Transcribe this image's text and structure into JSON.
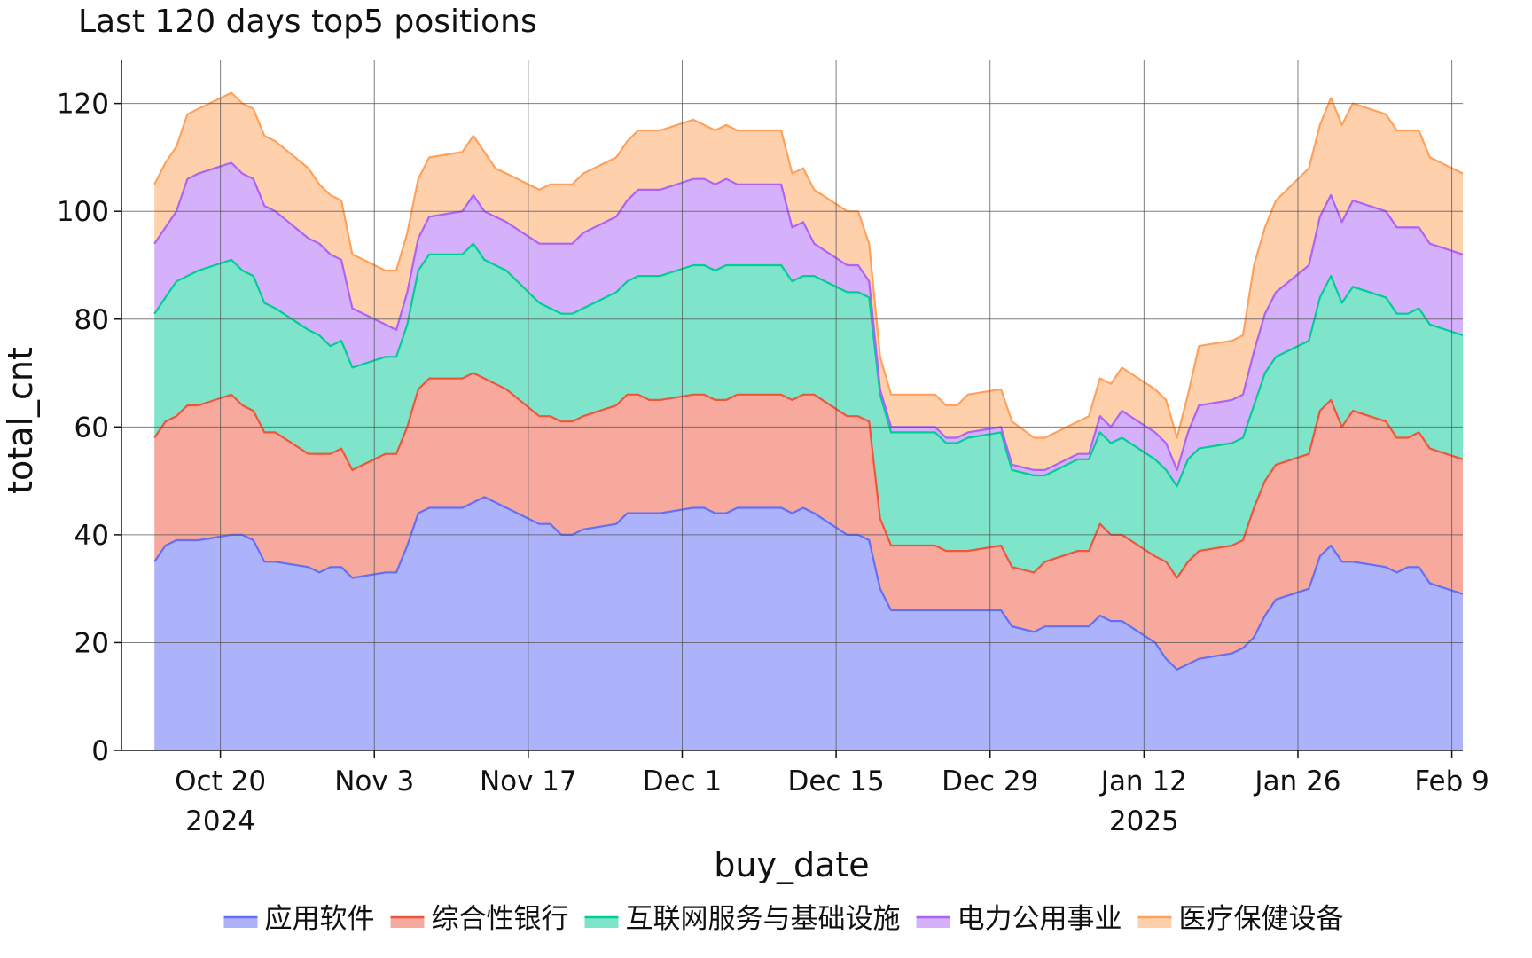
{
  "chart_data": {
    "type": "area",
    "stacked": true,
    "title": "Last 120 days top5 positions",
    "xlabel": "buy_date",
    "ylabel": "total_cnt",
    "ylim": [
      0,
      128
    ],
    "yticks": [
      0,
      20,
      40,
      60,
      80,
      100,
      120
    ],
    "xlim": [
      "2024-10-11",
      "2025-02-10"
    ],
    "xticks": [
      {
        "date": "2024-10-20",
        "label": "Oct 20",
        "sublabel": "2024"
      },
      {
        "date": "2024-11-03",
        "label": "Nov 3",
        "sublabel": ""
      },
      {
        "date": "2024-11-17",
        "label": "Nov 17",
        "sublabel": ""
      },
      {
        "date": "2024-12-01",
        "label": "Dec 1",
        "sublabel": ""
      },
      {
        "date": "2024-12-15",
        "label": "Dec 15",
        "sublabel": ""
      },
      {
        "date": "2024-12-29",
        "label": "Dec 29",
        "sublabel": ""
      },
      {
        "date": "2025-01-12",
        "label": "Jan 12",
        "sublabel": "2025"
      },
      {
        "date": "2025-01-26",
        "label": "Jan 26",
        "sublabel": ""
      },
      {
        "date": "2025-02-09",
        "label": "Feb 9",
        "sublabel": ""
      }
    ],
    "grid": true,
    "legend_position": "bottom",
    "x": [
      "2024-10-14",
      "2024-10-15",
      "2024-10-16",
      "2024-10-17",
      "2024-10-18",
      "2024-10-21",
      "2024-10-22",
      "2024-10-23",
      "2024-10-24",
      "2024-10-25",
      "2024-10-28",
      "2024-10-29",
      "2024-10-30",
      "2024-10-31",
      "2024-11-01",
      "2024-11-04",
      "2024-11-05",
      "2024-11-06",
      "2024-11-07",
      "2024-11-08",
      "2024-11-11",
      "2024-11-12",
      "2024-11-13",
      "2024-11-14",
      "2024-11-15",
      "2024-11-18",
      "2024-11-19",
      "2024-11-20",
      "2024-11-21",
      "2024-11-22",
      "2024-11-25",
      "2024-11-26",
      "2024-11-27",
      "2024-11-28",
      "2024-11-29",
      "2024-12-02",
      "2024-12-03",
      "2024-12-04",
      "2024-12-05",
      "2024-12-06",
      "2024-12-09",
      "2024-12-10",
      "2024-12-11",
      "2024-12-12",
      "2024-12-13",
      "2024-12-16",
      "2024-12-17",
      "2024-12-18",
      "2024-12-19",
      "2024-12-20",
      "2024-12-23",
      "2024-12-24",
      "2024-12-25",
      "2024-12-26",
      "2024-12-27",
      "2024-12-30",
      "2024-12-31",
      "2025-01-02",
      "2025-01-03",
      "2025-01-06",
      "2025-01-07",
      "2025-01-08",
      "2025-01-09",
      "2025-01-10",
      "2025-01-13",
      "2025-01-14",
      "2025-01-15",
      "2025-01-16",
      "2025-01-17",
      "2025-01-20",
      "2025-01-21",
      "2025-01-22",
      "2025-01-23",
      "2025-01-24",
      "2025-01-27",
      "2025-01-28",
      "2025-01-29",
      "2025-01-30",
      "2025-01-31",
      "2025-02-03",
      "2025-02-04",
      "2025-02-05",
      "2025-02-06",
      "2025-02-07",
      "2025-02-10"
    ],
    "series": [
      {
        "name": "应用软件",
        "line_color": "#636efa",
        "fill_color": "#adb3fb",
        "values": [
          35,
          38,
          39,
          39,
          39,
          40,
          40,
          39,
          35,
          35,
          34,
          33,
          34,
          34,
          32,
          33,
          33,
          38,
          44,
          45,
          45,
          46,
          47,
          46,
          45,
          42,
          42,
          40,
          40,
          41,
          42,
          44,
          44,
          44,
          44,
          45,
          45,
          44,
          44,
          45,
          45,
          45,
          44,
          45,
          44,
          40,
          40,
          39,
          30,
          26,
          26,
          26,
          26,
          26,
          26,
          26,
          23,
          22,
          23,
          23,
          23,
          25,
          24,
          24,
          20,
          17,
          15,
          16,
          17,
          18,
          19,
          21,
          25,
          28,
          30,
          36,
          38,
          35,
          35,
          34,
          33,
          34,
          34,
          31,
          29
        ]
      },
      {
        "name": "综合性银行",
        "line_color": "#ef553b",
        "fill_color": "#f6a99c",
        "values": [
          23,
          23,
          23,
          25,
          25,
          26,
          24,
          24,
          24,
          24,
          21,
          22,
          21,
          22,
          20,
          22,
          22,
          22,
          23,
          24,
          24,
          24,
          22,
          22,
          22,
          20,
          20,
          21,
          21,
          21,
          22,
          22,
          22,
          21,
          21,
          21,
          21,
          21,
          21,
          21,
          21,
          21,
          21,
          21,
          22,
          22,
          22,
          22,
          13,
          12,
          12,
          12,
          11,
          11,
          11,
          12,
          11,
          11,
          12,
          14,
          14,
          17,
          16,
          16,
          16,
          18,
          17,
          19,
          20,
          20,
          20,
          24,
          25,
          25,
          25,
          27,
          27,
          25,
          28,
          27,
          25,
          24,
          25,
          25,
          25
        ]
      },
      {
        "name": "互联网服务与基础设施",
        "line_color": "#00cc96",
        "fill_color": "#7fe5ca",
        "values": [
          23,
          23,
          25,
          24,
          25,
          25,
          25,
          25,
          24,
          23,
          23,
          22,
          20,
          20,
          19,
          18,
          18,
          19,
          22,
          23,
          23,
          24,
          22,
          22,
          22,
          21,
          20,
          20,
          20,
          20,
          21,
          21,
          22,
          23,
          23,
          24,
          24,
          24,
          25,
          24,
          24,
          24,
          22,
          22,
          22,
          23,
          23,
          23,
          23,
          21,
          21,
          21,
          20,
          20,
          21,
          21,
          18,
          18,
          16,
          17,
          17,
          17,
          17,
          18,
          18,
          17,
          17,
          19,
          19,
          19,
          19,
          19,
          20,
          20,
          21,
          21,
          23,
          23,
          23,
          23,
          23,
          23,
          23,
          23,
          23
        ]
      },
      {
        "name": "电力公用事业",
        "line_color": "#ab63fa",
        "fill_color": "#d5b1fc",
        "values": [
          13,
          13,
          13,
          18,
          18,
          18,
          18,
          18,
          18,
          18,
          17,
          17,
          17,
          15,
          11,
          6,
          5,
          6,
          6,
          7,
          8,
          9,
          9,
          9,
          9,
          11,
          12,
          13,
          13,
          14,
          14,
          15,
          16,
          16,
          16,
          16,
          16,
          16,
          16,
          15,
          15,
          15,
          10,
          10,
          6,
          5,
          5,
          3,
          1,
          1,
          1,
          1,
          1,
          1,
          1,
          1,
          1,
          1,
          1,
          1,
          1,
          3,
          3,
          5,
          5,
          5,
          3,
          5,
          8,
          8,
          8,
          10,
          11,
          12,
          14,
          15,
          15,
          15,
          16,
          16,
          16,
          16,
          15,
          15,
          15
        ]
      },
      {
        "name": "医疗保健设备",
        "line_color": "#ffa15a",
        "fill_color": "#ffd0ac",
        "values": [
          11,
          12,
          12,
          12,
          12,
          13,
          13,
          13,
          13,
          13,
          13,
          11,
          11,
          11,
          10,
          10,
          11,
          11,
          11,
          11,
          11,
          11,
          11,
          9,
          9,
          10,
          11,
          11,
          11,
          11,
          11,
          11,
          11,
          11,
          11,
          11,
          10,
          10,
          10,
          10,
          10,
          10,
          10,
          10,
          10,
          10,
          10,
          7,
          6,
          6,
          6,
          6,
          6,
          6,
          7,
          7,
          8,
          6,
          6,
          6,
          7,
          7,
          8,
          8,
          8,
          8,
          6,
          7,
          11,
          11,
          11,
          16,
          16,
          17,
          18,
          17,
          18,
          18,
          18,
          18,
          18,
          18,
          18,
          16,
          15
        ]
      }
    ]
  }
}
